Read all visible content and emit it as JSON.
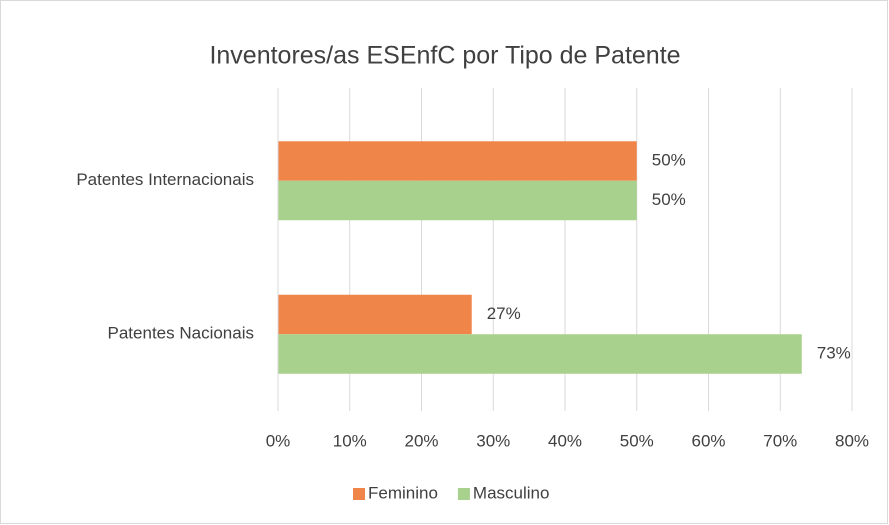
{
  "chart_data": {
    "type": "hbar",
    "title": "Inventores/as ESEnfC por Tipo de Patente",
    "categories": [
      "Patentes Internacionais",
      "Patentes Nacionais"
    ],
    "series": [
      {
        "name": "Feminino",
        "color": "#f0854a",
        "values": [
          50,
          27
        ],
        "value_labels": [
          "50%",
          "27%"
        ]
      },
      {
        "name": "Masculino",
        "color": "#a9d18e",
        "values": [
          50,
          73
        ],
        "value_labels": [
          "50%",
          "73%"
        ]
      }
    ],
    "xlim": [
      0,
      80
    ],
    "xticks": [
      {
        "value": 0,
        "label": "0%"
      },
      {
        "value": 10,
        "label": "10%"
      },
      {
        "value": 20,
        "label": "20%"
      },
      {
        "value": 30,
        "label": "30%"
      },
      {
        "value": 40,
        "label": "40%"
      },
      {
        "value": 50,
        "label": "50%"
      },
      {
        "value": 60,
        "label": "60%"
      },
      {
        "value": 70,
        "label": "70%"
      },
      {
        "value": 80,
        "label": "80%"
      }
    ],
    "grid": true,
    "legend": "bottom"
  }
}
